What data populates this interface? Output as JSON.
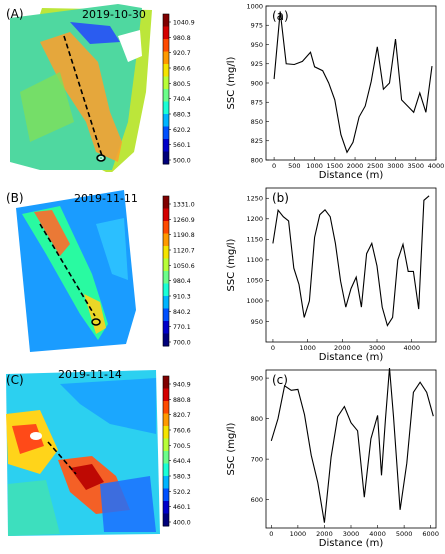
{
  "maps": [
    {
      "panel_label": "(A)",
      "date": "2019-10-30",
      "colorbar_ticks": [
        "1040.9",
        "980.8",
        "920.7",
        "860.6",
        "800.5",
        "740.4",
        "680.3",
        "620.2",
        "560.1",
        "500.0"
      ],
      "colorbar_colors": [
        "#800000",
        "#d40000",
        "#ff4a00",
        "#ff9a00",
        "#f5e400",
        "#b8ff38",
        "#6cff8a",
        "#1affd6",
        "#00b4ff",
        "#0050ff",
        "#0000c8",
        "#00007a"
      ]
    },
    {
      "panel_label": "(B)",
      "date": "2019-11-11",
      "colorbar_ticks": [
        "1331.0",
        "1260.9",
        "1190.8",
        "1120.7",
        "1050.6",
        "980.4",
        "910.3",
        "840.2",
        "770.1",
        "700.0"
      ],
      "colorbar_colors": [
        "#800000",
        "#d40000",
        "#ff4a00",
        "#ff9a00",
        "#f5e400",
        "#b8ff38",
        "#6cff8a",
        "#1affd6",
        "#00b4ff",
        "#0050ff",
        "#0000c8",
        "#00007a"
      ]
    },
    {
      "panel_label": "(C)",
      "date": "2019-11-14",
      "colorbar_ticks": [
        "940.9",
        "880.8",
        "820.7",
        "760.6",
        "700.5",
        "640.4",
        "580.3",
        "520.2",
        "460.1",
        "400.0"
      ],
      "colorbar_colors": [
        "#800000",
        "#d40000",
        "#ff4a00",
        "#ff9a00",
        "#f5e400",
        "#b8ff38",
        "#6cff8a",
        "#1affd6",
        "#00b4ff",
        "#0050ff",
        "#0000c8",
        "#00007a"
      ]
    }
  ],
  "chart_data": [
    {
      "type": "line",
      "panel_label": "(a)",
      "xlabel": "Distance  (m)",
      "ylabel": "SSC  (mg/l)",
      "xlim": [
        -200,
        4000
      ],
      "ylim": [
        800,
        1000
      ],
      "xticks": [
        0,
        500,
        1000,
        1500,
        2000,
        2500,
        3000,
        3500,
        4000
      ],
      "yticks": [
        800,
        825,
        850,
        875,
        900,
        925,
        950,
        975,
        1000
      ],
      "line_color": "#000000",
      "x": [
        0,
        150,
        300,
        500,
        700,
        900,
        1000,
        1200,
        1350,
        1500,
        1650,
        1800,
        1950,
        2100,
        2250,
        2400,
        2550,
        2700,
        2850,
        3000,
        3150,
        3300,
        3450,
        3600,
        3750,
        3900
      ],
      "y": [
        905,
        993,
        925,
        924,
        928,
        940,
        921,
        916,
        900,
        878,
        833,
        810,
        823,
        856,
        870,
        902,
        947,
        892,
        900,
        957,
        878,
        870,
        862,
        887,
        862,
        922
      ]
    },
    {
      "type": "line",
      "panel_label": "(b)",
      "xlabel": "Distance  (m)",
      "ylabel": "SSC  (mg/l)",
      "xlim": [
        -200,
        4700
      ],
      "ylim": [
        900,
        1275
      ],
      "xticks": [
        0,
        1000,
        2000,
        3000,
        4000
      ],
      "yticks": [
        950,
        1000,
        1050,
        1100,
        1150,
        1200,
        1250
      ],
      "line_color": "#000000",
      "x": [
        0,
        150,
        300,
        450,
        600,
        750,
        900,
        1050,
        1200,
        1350,
        1500,
        1650,
        1800,
        1950,
        2100,
        2250,
        2400,
        2550,
        2700,
        2850,
        3000,
        3150,
        3300,
        3450,
        3600,
        3750,
        3900,
        4050,
        4200,
        4350,
        4500
      ],
      "y": [
        1140,
        1221,
        1205,
        1195,
        1080,
        1040,
        960,
        1000,
        1155,
        1210,
        1222,
        1205,
        1140,
        1048,
        985,
        1030,
        1058,
        985,
        1115,
        1140,
        1085,
        985,
        940,
        960,
        1100,
        1138,
        1072,
        1072,
        980,
        1245,
        1256
      ]
    },
    {
      "type": "line",
      "panel_label": "(c)",
      "xlabel": "Distance  (m)",
      "ylabel": "SSC  (mg/l)",
      "xlim": [
        -200,
        6200
      ],
      "ylim": [
        530,
        920
      ],
      "xticks": [
        0,
        1000,
        2000,
        3000,
        4000,
        5000,
        6000
      ],
      "yticks": [
        600,
        700,
        800,
        900
      ],
      "line_color": "#000000",
      "x": [
        0,
        250,
        500,
        750,
        1000,
        1250,
        1500,
        1750,
        2000,
        2250,
        2500,
        2750,
        3000,
        3250,
        3500,
        3750,
        4000,
        4150,
        4300,
        4450,
        4600,
        4850,
        5100,
        5350,
        5600,
        5850,
        6100
      ],
      "y": [
        745,
        800,
        881,
        870,
        872,
        810,
        710,
        642,
        543,
        705,
        805,
        830,
        790,
        770,
        606,
        750,
        808,
        660,
        800,
        925,
        805,
        575,
        690,
        865,
        890,
        865,
        806
      ]
    }
  ]
}
